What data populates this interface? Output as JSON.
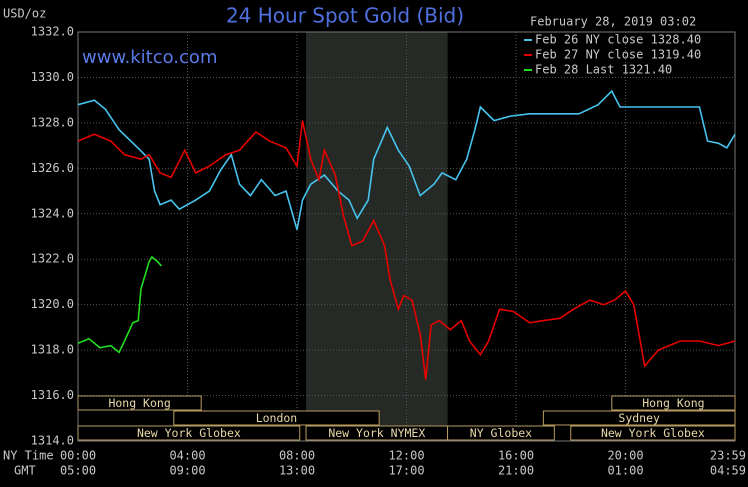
{
  "chart_data": {
    "type": "line",
    "title": "24 Hour Spot Gold (Bid)",
    "y_unit": "USD/oz",
    "website": "www.kitco.com",
    "timestamp": "February 28, 2019 03:02",
    "x_axis_labels": [
      "NY Time",
      "GMT"
    ],
    "xlim": [
      0,
      24
    ],
    "xticks": [
      {
        "value": 0,
        "label": "00:00"
      },
      {
        "value": 4,
        "label": "04:00"
      },
      {
        "value": 8,
        "label": "08:00"
      },
      {
        "value": 12,
        "label": "12:00"
      },
      {
        "value": 16,
        "label": "16:00"
      },
      {
        "value": 20,
        "label": "20:00"
      },
      {
        "value": 24,
        "label": "23:59"
      }
    ],
    "gmt_labels": [
      "05:00",
      "09:00",
      "13:00",
      "17:00",
      "21:00",
      "01:00",
      "04:59"
    ],
    "ylim": [
      1314,
      1332
    ],
    "yticks": [
      {
        "value": 1314,
        "label": "1314.0"
      },
      {
        "value": 1316,
        "label": "1316.0"
      },
      {
        "value": 1318,
        "label": "1318.0"
      },
      {
        "value": 1320,
        "label": "1320.0"
      },
      {
        "value": 1322,
        "label": "1322.0"
      },
      {
        "value": 1324,
        "label": "1324.0"
      },
      {
        "value": 1326,
        "label": "1326.0"
      },
      {
        "value": 1328,
        "label": "1328.0"
      },
      {
        "value": 1330,
        "label": "1330.0"
      },
      {
        "value": 1332,
        "label": "1332.0"
      }
    ],
    "grid": true,
    "sessions": [
      {
        "name": "Hong Kong",
        "row": 0,
        "start": 0,
        "end": 4.5
      },
      {
        "name": "Hong Kong",
        "row": 0,
        "start": 19.5,
        "end": 24
      },
      {
        "name": "London",
        "row": 1,
        "start": 3.5,
        "end": 11
      },
      {
        "name": "Sydney",
        "row": 1,
        "start": 17,
        "end": 24
      },
      {
        "name": "New York Globex",
        "row": 2,
        "start": 0,
        "end": 8.1
      },
      {
        "name": "New York NYMEX",
        "row": 2,
        "start": 8.33,
        "end": 13.5,
        "shaded": true
      },
      {
        "name": "NY Globex",
        "row": 2,
        "start": 13.5,
        "end": 17.4
      },
      {
        "name": "New York Globex",
        "row": 2,
        "start": 18,
        "end": 24
      }
    ],
    "series": [
      {
        "name": "Feb 26 NY close 1328.40",
        "color": "#46c4ee",
        "x": [
          0,
          0.6,
          1.0,
          1.5,
          2.1,
          2.6,
          2.8,
          3.0,
          3.4,
          3.7,
          4.3,
          4.8,
          5.2,
          5.6,
          5.9,
          6.3,
          6.7,
          7.2,
          7.6,
          8.0,
          8.2,
          8.5,
          9.0,
          9.5,
          9.9,
          10.2,
          10.6,
          10.8,
          11.3,
          11.7,
          12.1,
          12.5,
          13.0,
          13.3,
          13.8,
          14.2,
          14.5,
          14.7,
          15.2,
          15.8,
          16.5,
          17.6,
          18.3,
          19.0,
          19.5,
          19.8,
          21.2,
          22.7,
          23.0,
          23.4,
          23.7,
          24.0
        ],
        "values": [
          1328.8,
          1329.0,
          1328.6,
          1327.7,
          1327.0,
          1326.4,
          1325.0,
          1324.4,
          1324.6,
          1324.2,
          1324.6,
          1325.0,
          1325.9,
          1326.6,
          1325.3,
          1324.8,
          1325.5,
          1324.8,
          1325.0,
          1323.3,
          1324.6,
          1325.3,
          1325.7,
          1325.0,
          1324.6,
          1323.8,
          1324.6,
          1326.4,
          1327.8,
          1326.8,
          1326.1,
          1324.8,
          1325.3,
          1325.8,
          1325.5,
          1326.4,
          1327.7,
          1328.7,
          1328.1,
          1328.3,
          1328.4,
          1328.4,
          1328.4,
          1328.8,
          1329.4,
          1328.7,
          1328.7,
          1328.7,
          1327.2,
          1327.1,
          1326.9,
          1327.5
        ]
      },
      {
        "name": "Feb 27 NY close 1319.40",
        "color": "#e60000",
        "x": [
          0,
          0.6,
          1.2,
          1.7,
          2.3,
          2.6,
          3.0,
          3.4,
          3.9,
          4.3,
          4.8,
          5.4,
          5.9,
          6.5,
          7.0,
          7.6,
          8.0,
          8.2,
          8.5,
          8.8,
          9.0,
          9.4,
          9.7,
          10.0,
          10.4,
          10.8,
          11.2,
          11.4,
          11.7,
          11.9,
          12.2,
          12.5,
          12.7,
          12.9,
          13.2,
          13.6,
          14.0,
          14.3,
          14.7,
          15.0,
          15.4,
          15.9,
          16.5,
          17.0,
          17.6,
          18.1,
          18.7,
          19.2,
          19.6,
          20.0,
          20.3,
          20.7,
          21.2,
          22.0,
          22.7,
          23.4,
          24.0
        ],
        "values": [
          1327.2,
          1327.5,
          1327.2,
          1326.6,
          1326.4,
          1326.6,
          1325.8,
          1325.6,
          1326.8,
          1325.8,
          1326.1,
          1326.6,
          1326.8,
          1327.6,
          1327.2,
          1326.9,
          1326.1,
          1328.1,
          1326.4,
          1325.5,
          1326.8,
          1325.7,
          1323.9,
          1322.6,
          1322.8,
          1323.7,
          1322.6,
          1321.1,
          1319.8,
          1320.4,
          1320.2,
          1318.7,
          1316.7,
          1319.1,
          1319.3,
          1318.9,
          1319.3,
          1318.4,
          1317.8,
          1318.4,
          1319.8,
          1319.7,
          1319.2,
          1319.3,
          1319.4,
          1319.8,
          1320.2,
          1320.0,
          1320.2,
          1320.6,
          1320.0,
          1317.3,
          1318.0,
          1318.4,
          1318.4,
          1318.2,
          1318.4
        ]
      },
      {
        "name": "Feb 28 Last 1321.40",
        "color": "#22dd22",
        "x": [
          0,
          0.4,
          0.8,
          1.2,
          1.5,
          1.7,
          2.0,
          2.2,
          2.3,
          2.6,
          2.7,
          2.9,
          3.05
        ],
        "values": [
          1318.3,
          1318.5,
          1318.1,
          1318.2,
          1317.9,
          1318.4,
          1319.2,
          1319.3,
          1320.7,
          1321.9,
          1322.1,
          1321.9,
          1321.7
        ]
      }
    ]
  }
}
